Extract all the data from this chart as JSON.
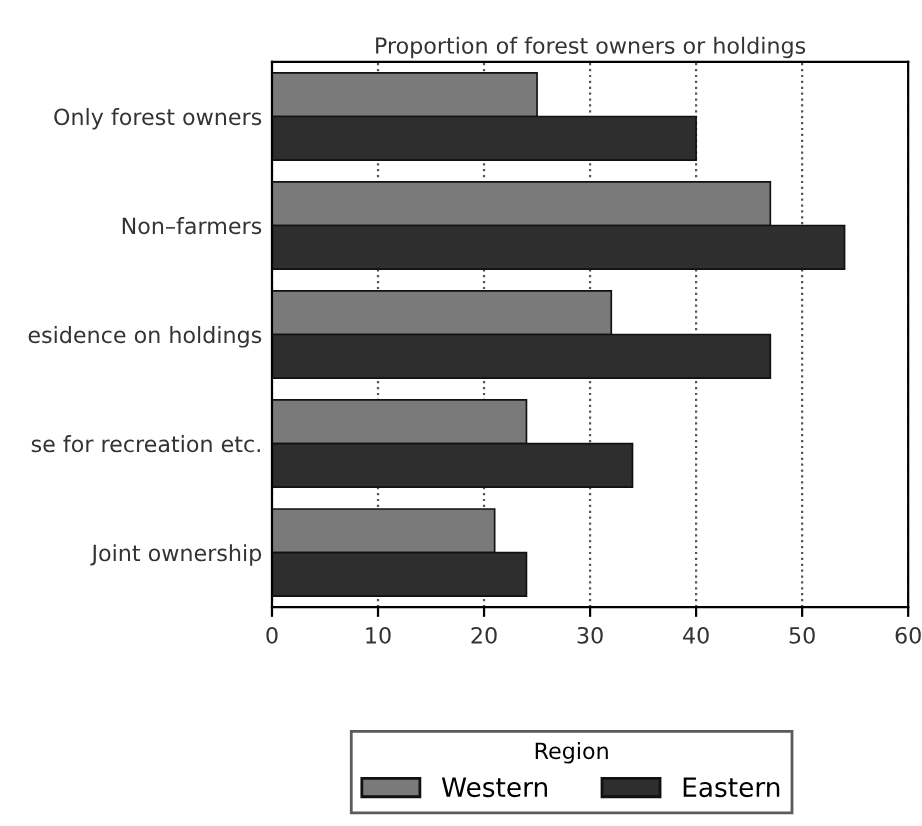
{
  "chart_data": {
    "type": "bar",
    "orientation": "horizontal",
    "title": "Proportion of forest owners or holdings",
    "categories": [
      "Only forest owners",
      "Non–farmers",
      "esidence on holdings",
      "se for recreation etc.",
      "Joint ownership"
    ],
    "series": [
      {
        "name": "Western",
        "color": "#7a7a7a",
        "values": [
          25,
          47,
          32,
          24,
          21
        ]
      },
      {
        "name": "Eastern",
        "color": "#2e2e2e",
        "values": [
          40,
          54,
          47,
          34,
          24
        ]
      }
    ],
    "legend_title": "Region",
    "legend": "bottom",
    "grid": "x",
    "xlim": [
      0,
      60
    ],
    "xticks": [
      0,
      10,
      20,
      30,
      40,
      50,
      60
    ]
  }
}
